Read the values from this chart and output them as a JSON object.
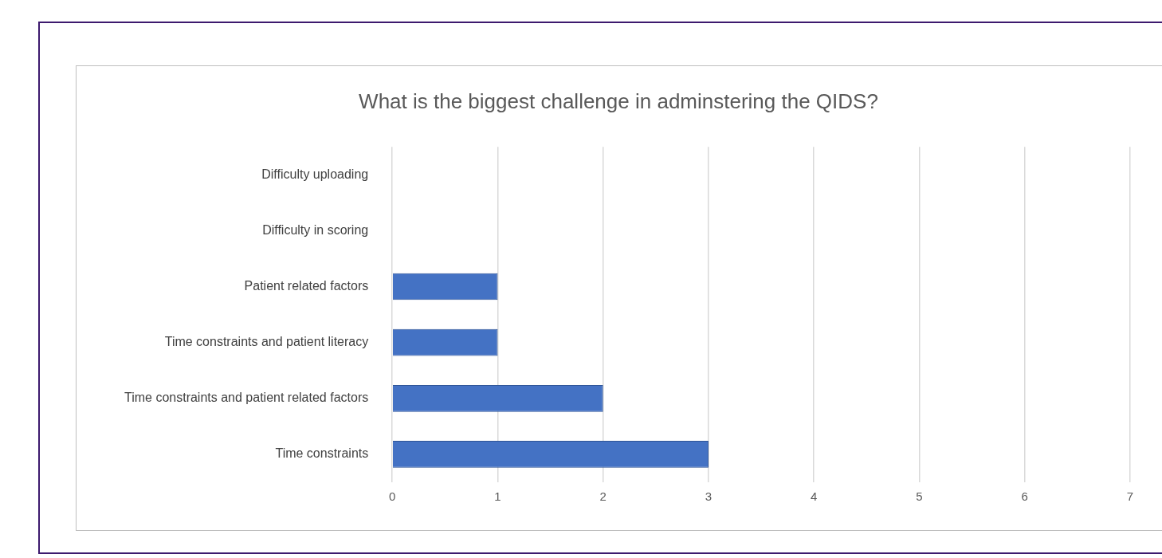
{
  "chart_data": {
    "type": "bar",
    "orientation": "horizontal",
    "title": "What is the biggest challenge in adminstering the QIDS?",
    "categories": [
      "Difficulty uploading",
      "Difficulty in scoring",
      "Patient related factors",
      "Time constraints and patient literacy",
      "Time constraints and patient related factors",
      "Time constraints"
    ],
    "values": [
      0,
      0,
      1,
      1,
      2,
      3
    ],
    "color": "#4472c4",
    "xlim": [
      0,
      7
    ],
    "xticks": [
      0,
      1,
      2,
      3,
      4,
      5,
      6,
      7
    ],
    "grid": "x",
    "legend": false
  }
}
